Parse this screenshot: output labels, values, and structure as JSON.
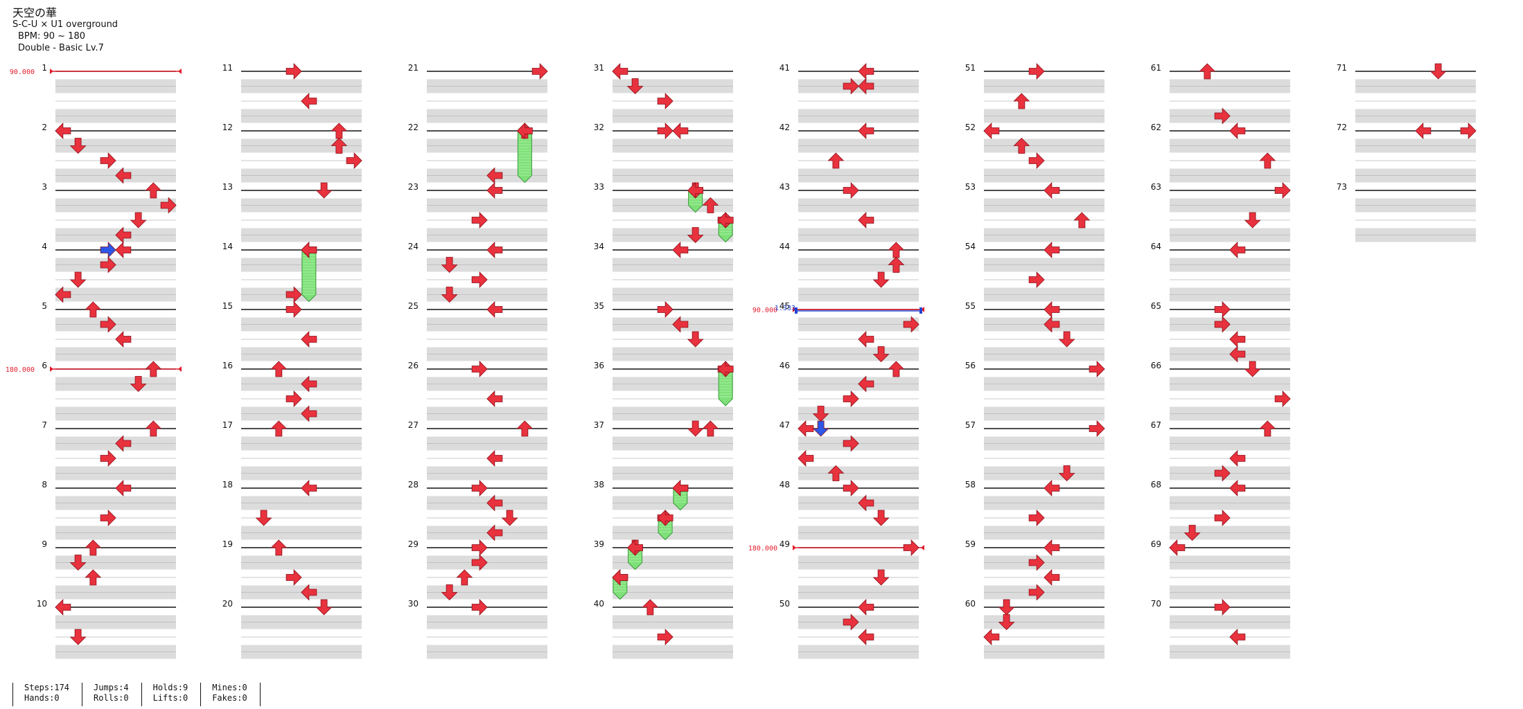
{
  "header": {
    "title": "天空の華",
    "artist": "S-C-U × U1 overground",
    "bpm": "BPM: 90 ~ 180",
    "difficulty": "Double - Basic  Lv.7"
  },
  "colors": {
    "note_red": "#e8323e",
    "note_blue": "#2d57e6",
    "hold_green": "#7fe07a",
    "lane_gray": "#dcdcdc",
    "bpm_line": "#e21c2a",
    "stop_line": "#2143d6"
  },
  "chart_data": {
    "type": "table",
    "total_measures": 73,
    "columns": 8,
    "measures_per_column": 10,
    "rows_per_measure": 4,
    "lanes": 8,
    "bpm_changes": [
      {
        "measure": 1,
        "bpm": "90.000"
      },
      {
        "measure": 6,
        "bpm": "180.000"
      },
      {
        "measure": 45,
        "bpm": "90.000"
      },
      {
        "measure": 49,
        "bpm": "180.000"
      }
    ],
    "stops": [
      {
        "measure": 45,
        "label": "1.333"
      }
    ],
    "notes": [
      {
        "m": 2,
        "r": 0,
        "l": 0,
        "d": "left"
      },
      {
        "m": 2,
        "r": 1,
        "l": 1,
        "d": "down"
      },
      {
        "m": 2,
        "r": 2,
        "l": 3,
        "d": "right"
      },
      {
        "m": 2,
        "r": 3,
        "l": 4,
        "d": "left"
      },
      {
        "m": 3,
        "r": 0,
        "l": 6,
        "d": "up"
      },
      {
        "m": 3,
        "r": 1,
        "l": 7,
        "d": "right"
      },
      {
        "m": 3,
        "r": 2,
        "l": 5,
        "d": "down"
      },
      {
        "m": 3,
        "r": 3,
        "l": 4,
        "d": "left"
      },
      {
        "m": 4,
        "r": 0,
        "l": 4,
        "d": "left"
      },
      {
        "m": 4,
        "r": 1,
        "l": 3,
        "d": "right"
      },
      {
        "m": 4,
        "r": 2,
        "l": 1,
        "d": "down"
      },
      {
        "m": 4,
        "r": 3,
        "l": 0,
        "d": "left"
      },
      {
        "m": 5,
        "r": 0,
        "l": 2,
        "d": "up"
      },
      {
        "m": 5,
        "r": 1,
        "l": 3,
        "d": "right"
      },
      {
        "m": 5,
        "r": 2,
        "l": 4,
        "d": "left"
      },
      {
        "m": 6,
        "r": 0,
        "l": 6,
        "d": "up"
      },
      {
        "m": 6,
        "r": 1,
        "l": 5,
        "d": "down"
      },
      {
        "m": 7,
        "r": 0,
        "l": 6,
        "d": "up"
      },
      {
        "m": 7,
        "r": 1,
        "l": 4,
        "d": "left"
      },
      {
        "m": 7,
        "r": 2,
        "l": 3,
        "d": "right"
      },
      {
        "m": 8,
        "r": 0,
        "l": 4,
        "d": "left"
      },
      {
        "m": 8,
        "r": 2,
        "l": 3,
        "d": "right"
      },
      {
        "m": 9,
        "r": 0,
        "l": 2,
        "d": "up"
      },
      {
        "m": 9,
        "r": 1,
        "l": 1,
        "d": "down"
      },
      {
        "m": 9,
        "r": 2,
        "l": 2,
        "d": "up"
      },
      {
        "m": 10,
        "r": 0,
        "l": 0,
        "d": "left"
      },
      {
        "m": 10,
        "r": 2,
        "l": 1,
        "d": "down"
      },
      {
        "m": 11,
        "r": 0,
        "l": 3,
        "d": "right"
      },
      {
        "m": 11,
        "r": 2,
        "l": 4,
        "d": "left"
      },
      {
        "m": 12,
        "r": 0,
        "l": 6,
        "d": "up"
      },
      {
        "m": 12,
        "r": 1,
        "l": 6,
        "d": "up"
      },
      {
        "m": 12,
        "r": 2,
        "l": 7,
        "d": "right"
      },
      {
        "m": 13,
        "r": 0,
        "l": 5,
        "d": "down"
      },
      {
        "m": 14,
        "r": 0,
        "l": 4,
        "d": "left"
      },
      {
        "m": 14,
        "r": 3,
        "l": 3,
        "d": "right"
      },
      {
        "m": 15,
        "r": 0,
        "l": 3,
        "d": "right"
      },
      {
        "m": 15,
        "r": 2,
        "l": 4,
        "d": "left"
      },
      {
        "m": 16,
        "r": 0,
        "l": 2,
        "d": "up"
      },
      {
        "m": 16,
        "r": 1,
        "l": 4,
        "d": "left"
      },
      {
        "m": 16,
        "r": 2,
        "l": 3,
        "d": "right"
      },
      {
        "m": 16,
        "r": 3,
        "l": 4,
        "d": "left"
      },
      {
        "m": 17,
        "r": 0,
        "l": 2,
        "d": "up"
      },
      {
        "m": 18,
        "r": 0,
        "l": 4,
        "d": "left"
      },
      {
        "m": 18,
        "r": 2,
        "l": 1,
        "d": "down"
      },
      {
        "m": 19,
        "r": 0,
        "l": 2,
        "d": "up"
      },
      {
        "m": 19,
        "r": 2,
        "l": 3,
        "d": "right"
      },
      {
        "m": 19,
        "r": 3,
        "l": 4,
        "d": "left"
      },
      {
        "m": 20,
        "r": 0,
        "l": 5,
        "d": "down"
      },
      {
        "m": 21,
        "r": 0,
        "l": 7,
        "d": "right"
      },
      {
        "m": 22,
        "r": 0,
        "l": 6,
        "d": "up"
      },
      {
        "m": 22,
        "r": 3,
        "l": 4,
        "d": "left"
      },
      {
        "m": 23,
        "r": 0,
        "l": 4,
        "d": "left"
      },
      {
        "m": 23,
        "r": 2,
        "l": 3,
        "d": "right"
      },
      {
        "m": 24,
        "r": 0,
        "l": 4,
        "d": "left"
      },
      {
        "m": 24,
        "r": 1,
        "l": 1,
        "d": "down"
      },
      {
        "m": 24,
        "r": 2,
        "l": 3,
        "d": "right"
      },
      {
        "m": 24,
        "r": 3,
        "l": 1,
        "d": "down"
      },
      {
        "m": 25,
        "r": 0,
        "l": 4,
        "d": "left"
      },
      {
        "m": 26,
        "r": 0,
        "l": 3,
        "d": "right"
      },
      {
        "m": 26,
        "r": 2,
        "l": 4,
        "d": "left"
      },
      {
        "m": 27,
        "r": 0,
        "l": 6,
        "d": "up"
      },
      {
        "m": 27,
        "r": 2,
        "l": 4,
        "d": "left"
      },
      {
        "m": 28,
        "r": 0,
        "l": 3,
        "d": "right"
      },
      {
        "m": 28,
        "r": 1,
        "l": 4,
        "d": "left"
      },
      {
        "m": 28,
        "r": 2,
        "l": 5,
        "d": "down"
      },
      {
        "m": 28,
        "r": 3,
        "l": 4,
        "d": "left"
      },
      {
        "m": 29,
        "r": 0,
        "l": 3,
        "d": "right"
      },
      {
        "m": 29,
        "r": 1,
        "l": 3,
        "d": "right"
      },
      {
        "m": 29,
        "r": 2,
        "l": 2,
        "d": "up"
      },
      {
        "m": 29,
        "r": 3,
        "l": 1,
        "d": "down"
      },
      {
        "m": 30,
        "r": 0,
        "l": 3,
        "d": "right"
      },
      {
        "m": 31,
        "r": 0,
        "l": 0,
        "d": "left"
      },
      {
        "m": 31,
        "r": 1,
        "l": 1,
        "d": "down"
      },
      {
        "m": 31,
        "r": 2,
        "l": 3,
        "d": "right"
      },
      {
        "m": 32,
        "r": 0,
        "l": 3,
        "d": "right"
      },
      {
        "m": 32,
        "r": 0,
        "l": 4,
        "d": "left"
      },
      {
        "m": 33,
        "r": 0,
        "l": 5,
        "d": "down"
      },
      {
        "m": 33,
        "r": 1,
        "l": 6,
        "d": "up"
      },
      {
        "m": 33,
        "r": 2,
        "l": 7,
        "d": "right"
      },
      {
        "m": 33,
        "r": 3,
        "l": 5,
        "d": "down"
      },
      {
        "m": 34,
        "r": 0,
        "l": 4,
        "d": "left"
      },
      {
        "m": 35,
        "r": 0,
        "l": 3,
        "d": "right"
      },
      {
        "m": 35,
        "r": 1,
        "l": 4,
        "d": "left"
      },
      {
        "m": 35,
        "r": 2,
        "l": 5,
        "d": "down"
      },
      {
        "m": 36,
        "r": 0,
        "l": 7,
        "d": "right"
      },
      {
        "m": 37,
        "r": 0,
        "l": 5,
        "d": "down"
      },
      {
        "m": 37,
        "r": 0,
        "l": 6,
        "d": "up"
      },
      {
        "m": 38,
        "r": 0,
        "l": 4,
        "d": "left"
      },
      {
        "m": 38,
        "r": 2,
        "l": 3,
        "d": "right"
      },
      {
        "m": 39,
        "r": 0,
        "l": 1,
        "d": "down"
      },
      {
        "m": 39,
        "r": 2,
        "l": 0,
        "d": "left"
      },
      {
        "m": 40,
        "r": 0,
        "l": 2,
        "d": "up"
      },
      {
        "m": 40,
        "r": 2,
        "l": 3,
        "d": "right"
      },
      {
        "m": 41,
        "r": 0,
        "l": 4,
        "d": "left"
      },
      {
        "m": 41,
        "r": 1,
        "l": 3,
        "d": "right"
      },
      {
        "m": 41,
        "r": 1,
        "l": 4,
        "d": "left"
      },
      {
        "m": 42,
        "r": 0,
        "l": 4,
        "d": "left"
      },
      {
        "m": 42,
        "r": 2,
        "l": 2,
        "d": "up"
      },
      {
        "m": 43,
        "r": 0,
        "l": 3,
        "d": "right"
      },
      {
        "m": 43,
        "r": 2,
        "l": 4,
        "d": "left"
      },
      {
        "m": 44,
        "r": 0,
        "l": 6,
        "d": "up"
      },
      {
        "m": 44,
        "r": 1,
        "l": 6,
        "d": "up"
      },
      {
        "m": 44,
        "r": 2,
        "l": 5,
        "d": "down"
      },
      {
        "m": 45,
        "r": 1,
        "l": 7,
        "d": "right"
      },
      {
        "m": 45,
        "r": 2,
        "l": 4,
        "d": "left"
      },
      {
        "m": 45,
        "r": 3,
        "l": 5,
        "d": "down"
      },
      {
        "m": 46,
        "r": 0,
        "l": 6,
        "d": "up"
      },
      {
        "m": 46,
        "r": 1,
        "l": 4,
        "d": "left"
      },
      {
        "m": 46,
        "r": 2,
        "l": 3,
        "d": "right"
      },
      {
        "m": 46,
        "r": 3,
        "l": 1,
        "d": "down"
      },
      {
        "m": 47,
        "r": 0,
        "l": 0,
        "d": "left"
      },
      {
        "m": 47,
        "r": 1,
        "l": 3,
        "d": "right"
      },
      {
        "m": 47,
        "r": 2,
        "l": 0,
        "d": "left"
      },
      {
        "m": 47,
        "r": 3,
        "l": 2,
        "d": "up"
      },
      {
        "m": 48,
        "r": 0,
        "l": 3,
        "d": "right"
      },
      {
        "m": 48,
        "r": 1,
        "l": 4,
        "d": "left"
      },
      {
        "m": 48,
        "r": 2,
        "l": 5,
        "d": "down"
      },
      {
        "m": 49,
        "r": 0,
        "l": 7,
        "d": "right"
      },
      {
        "m": 49,
        "r": 2,
        "l": 5,
        "d": "down"
      },
      {
        "m": 50,
        "r": 0,
        "l": 4,
        "d": "left"
      },
      {
        "m": 50,
        "r": 1,
        "l": 3,
        "d": "right"
      },
      {
        "m": 50,
        "r": 2,
        "l": 4,
        "d": "left"
      },
      {
        "m": 51,
        "r": 0,
        "l": 3,
        "d": "right"
      },
      {
        "m": 51,
        "r": 2,
        "l": 2,
        "d": "up"
      },
      {
        "m": 52,
        "r": 0,
        "l": 0,
        "d": "left"
      },
      {
        "m": 52,
        "r": 1,
        "l": 2,
        "d": "up"
      },
      {
        "m": 52,
        "r": 2,
        "l": 3,
        "d": "right"
      },
      {
        "m": 53,
        "r": 0,
        "l": 4,
        "d": "left"
      },
      {
        "m": 53,
        "r": 2,
        "l": 6,
        "d": "up"
      },
      {
        "m": 54,
        "r": 0,
        "l": 4,
        "d": "left"
      },
      {
        "m": 54,
        "r": 2,
        "l": 3,
        "d": "right"
      },
      {
        "m": 55,
        "r": 0,
        "l": 4,
        "d": "left"
      },
      {
        "m": 55,
        "r": 1,
        "l": 4,
        "d": "left"
      },
      {
        "m": 55,
        "r": 2,
        "l": 5,
        "d": "down"
      },
      {
        "m": 56,
        "r": 0,
        "l": 7,
        "d": "right"
      },
      {
        "m": 57,
        "r": 0,
        "l": 7,
        "d": "right"
      },
      {
        "m": 57,
        "r": 3,
        "l": 5,
        "d": "down"
      },
      {
        "m": 58,
        "r": 0,
        "l": 4,
        "d": "left"
      },
      {
        "m": 58,
        "r": 2,
        "l": 3,
        "d": "right"
      },
      {
        "m": 59,
        "r": 0,
        "l": 4,
        "d": "left"
      },
      {
        "m": 59,
        "r": 1,
        "l": 3,
        "d": "right"
      },
      {
        "m": 59,
        "r": 2,
        "l": 4,
        "d": "left"
      },
      {
        "m": 59,
        "r": 3,
        "l": 3,
        "d": "right"
      },
      {
        "m": 60,
        "r": 0,
        "l": 1,
        "d": "down"
      },
      {
        "m": 60,
        "r": 1,
        "l": 1,
        "d": "down"
      },
      {
        "m": 60,
        "r": 2,
        "l": 0,
        "d": "left"
      },
      {
        "m": 61,
        "r": 0,
        "l": 2,
        "d": "up"
      },
      {
        "m": 61,
        "r": 3,
        "l": 3,
        "d": "right"
      },
      {
        "m": 62,
        "r": 0,
        "l": 4,
        "d": "left"
      },
      {
        "m": 62,
        "r": 2,
        "l": 6,
        "d": "up"
      },
      {
        "m": 63,
        "r": 0,
        "l": 7,
        "d": "right"
      },
      {
        "m": 63,
        "r": 2,
        "l": 5,
        "d": "down"
      },
      {
        "m": 64,
        "r": 0,
        "l": 4,
        "d": "left"
      },
      {
        "m": 65,
        "r": 0,
        "l": 3,
        "d": "right"
      },
      {
        "m": 65,
        "r": 1,
        "l": 3,
        "d": "right"
      },
      {
        "m": 65,
        "r": 2,
        "l": 4,
        "d": "left"
      },
      {
        "m": 65,
        "r": 3,
        "l": 4,
        "d": "left"
      },
      {
        "m": 66,
        "r": 0,
        "l": 5,
        "d": "down"
      },
      {
        "m": 66,
        "r": 2,
        "l": 7,
        "d": "right"
      },
      {
        "m": 67,
        "r": 0,
        "l": 6,
        "d": "up"
      },
      {
        "m": 67,
        "r": 2,
        "l": 4,
        "d": "left"
      },
      {
        "m": 67,
        "r": 3,
        "l": 3,
        "d": "right"
      },
      {
        "m": 68,
        "r": 0,
        "l": 4,
        "d": "left"
      },
      {
        "m": 68,
        "r": 2,
        "l": 3,
        "d": "right"
      },
      {
        "m": 68,
        "r": 3,
        "l": 1,
        "d": "down"
      },
      {
        "m": 69,
        "r": 0,
        "l": 0,
        "d": "left"
      },
      {
        "m": 70,
        "r": 0,
        "l": 3,
        "d": "right"
      },
      {
        "m": 70,
        "r": 2,
        "l": 4,
        "d": "left"
      },
      {
        "m": 71,
        "r": 0,
        "l": 5,
        "d": "down"
      },
      {
        "m": 72,
        "r": 0,
        "l": 4,
        "d": "left"
      },
      {
        "m": 72,
        "r": 0,
        "l": 7,
        "d": "right"
      }
    ],
    "blue_notes": [
      {
        "m": 4,
        "r": 0,
        "l": 3,
        "d": "right"
      },
      {
        "m": 47,
        "r": 0,
        "l": 1,
        "d": "down"
      }
    ],
    "holds": [
      {
        "m": 14,
        "r": 0,
        "l": 4,
        "rows": 3
      },
      {
        "m": 22,
        "r": 0,
        "l": 6,
        "rows": 3
      },
      {
        "m": 33,
        "r": 0,
        "l": 5,
        "rows": 1
      },
      {
        "m": 33,
        "r": 2,
        "l": 7,
        "rows": 1
      },
      {
        "m": 36,
        "r": 0,
        "l": 7,
        "rows": 2
      },
      {
        "m": 38,
        "r": 0,
        "l": 4,
        "rows": 1
      },
      {
        "m": 38,
        "r": 2,
        "l": 3,
        "rows": 1
      },
      {
        "m": 39,
        "r": 0,
        "l": 1,
        "rows": 1
      },
      {
        "m": 39,
        "r": 2,
        "l": 0,
        "rows": 1
      }
    ]
  },
  "stats": [
    {
      "line1": "Steps:174",
      "line2": "Hands:0"
    },
    {
      "line1": "Jumps:4",
      "line2": "Rolls:0"
    },
    {
      "line1": "Holds:9",
      "line2": "Lifts:0"
    },
    {
      "line1": "Mines:0",
      "line2": "Fakes:0"
    }
  ]
}
